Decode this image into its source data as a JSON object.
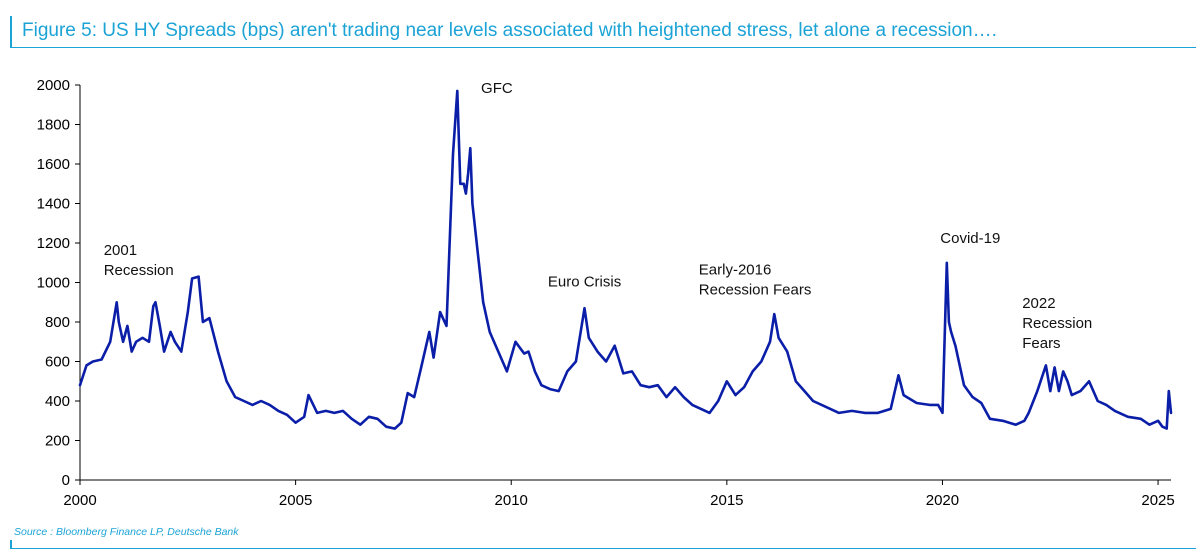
{
  "header": {
    "title": "Figure 5: US HY Spreads (bps) aren't trading near levels associated with heightened stress, let alone a recession…."
  },
  "footer": {
    "source": "Source : Bloomberg Finance LP, Deutsche Bank"
  },
  "colors": {
    "accent": "#1ba3d6",
    "series": "#0b1ea8",
    "axis": "#000000"
  },
  "chart_data": {
    "type": "line",
    "title": "",
    "xlabel": "",
    "ylabel": "",
    "xlim": [
      2000,
      2025.3
    ],
    "ylim": [
      0,
      2000
    ],
    "x_ticks": [
      2000,
      2005,
      2010,
      2015,
      2020,
      2025
    ],
    "y_ticks": [
      0,
      200,
      400,
      600,
      800,
      1000,
      1200,
      1400,
      1600,
      1800,
      2000
    ],
    "grid": false,
    "legend": "none",
    "series": [
      {
        "x": [
          2000.0,
          2000.15,
          2000.3,
          2000.5,
          2000.7,
          2000.85,
          2000.9,
          2001.0,
          2001.1,
          2001.2,
          2001.3,
          2001.45,
          2001.6,
          2001.7,
          2001.75,
          2001.85,
          2001.95,
          2002.1,
          2002.2,
          2002.35,
          2002.5,
          2002.6,
          2002.75,
          2002.85,
          2003.0,
          2003.2,
          2003.4,
          2003.6,
          2003.8,
          2004.0,
          2004.2,
          2004.4,
          2004.6,
          2004.8,
          2005.0,
          2005.2,
          2005.3,
          2005.5,
          2005.7,
          2005.9,
          2006.1,
          2006.3,
          2006.5,
          2006.7,
          2006.9,
          2007.1,
          2007.3,
          2007.45,
          2007.6,
          2007.75,
          2007.9,
          2008.1,
          2008.2,
          2008.35,
          2008.5,
          2008.65,
          2008.75,
          2008.82,
          2008.9,
          2008.95,
          2009.0,
          2009.05,
          2009.1,
          2009.2,
          2009.35,
          2009.5,
          2009.7,
          2009.9,
          2010.1,
          2010.3,
          2010.4,
          2010.55,
          2010.7,
          2010.9,
          2011.1,
          2011.3,
          2011.5,
          2011.7,
          2011.8,
          2012.0,
          2012.2,
          2012.4,
          2012.6,
          2012.8,
          2013.0,
          2013.2,
          2013.4,
          2013.6,
          2013.8,
          2014.0,
          2014.2,
          2014.4,
          2014.6,
          2014.8,
          2015.0,
          2015.2,
          2015.4,
          2015.6,
          2015.8,
          2016.0,
          2016.1,
          2016.2,
          2016.4,
          2016.6,
          2016.8,
          2017.0,
          2017.3,
          2017.6,
          2017.9,
          2018.2,
          2018.5,
          2018.8,
          2018.98,
          2019.1,
          2019.4,
          2019.7,
          2019.9,
          2020.0,
          2020.1,
          2020.15,
          2020.2,
          2020.3,
          2020.5,
          2020.7,
          2020.9,
          2021.1,
          2021.4,
          2021.7,
          2021.9,
          2022.0,
          2022.2,
          2022.4,
          2022.5,
          2022.6,
          2022.7,
          2022.8,
          2022.9,
          2023.0,
          2023.2,
          2023.4,
          2023.6,
          2023.8,
          2024.0,
          2024.3,
          2024.6,
          2024.8,
          2025.0,
          2025.1,
          2025.2,
          2025.25,
          2025.3
        ],
        "values": [
          480,
          580,
          600,
          610,
          700,
          900,
          800,
          700,
          780,
          650,
          700,
          720,
          700,
          880,
          900,
          780,
          650,
          750,
          700,
          650,
          850,
          1020,
          1030,
          800,
          820,
          650,
          500,
          420,
          400,
          380,
          400,
          380,
          350,
          330,
          290,
          320,
          430,
          340,
          350,
          340,
          350,
          310,
          280,
          320,
          310,
          270,
          260,
          290,
          440,
          420,
          560,
          750,
          620,
          850,
          780,
          1650,
          1970,
          1500,
          1500,
          1450,
          1550,
          1680,
          1400,
          1200,
          900,
          750,
          650,
          550,
          700,
          640,
          650,
          550,
          480,
          460,
          450,
          550,
          600,
          870,
          720,
          650,
          600,
          680,
          540,
          550,
          480,
          470,
          480,
          420,
          470,
          420,
          380,
          360,
          340,
          400,
          500,
          430,
          470,
          550,
          600,
          700,
          840,
          720,
          650,
          500,
          450,
          400,
          370,
          340,
          350,
          340,
          340,
          360,
          530,
          430,
          390,
          380,
          380,
          340,
          1100,
          800,
          750,
          680,
          480,
          420,
          390,
          310,
          300,
          280,
          300,
          340,
          450,
          580,
          450,
          570,
          450,
          550,
          500,
          430,
          450,
          500,
          400,
          380,
          350,
          320,
          310,
          280,
          300,
          270,
          260,
          450,
          340
        ]
      }
    ],
    "annotations": [
      {
        "lines": [
          "2001",
          "Recession"
        ],
        "x": 2000.55,
        "y": 1140
      },
      {
        "lines": [
          "GFC"
        ],
        "x": 2009.3,
        "y": 1960
      },
      {
        "lines": [
          "Euro Crisis"
        ],
        "x": 2010.85,
        "y": 980
      },
      {
        "lines": [
          "Early-2016",
          "Recession Fears"
        ],
        "x": 2014.35,
        "y": 1040
      },
      {
        "lines": [
          "Covid-19"
        ],
        "x": 2019.95,
        "y": 1200
      },
      {
        "lines": [
          "2022",
          "Recession",
          "Fears"
        ],
        "x": 2021.85,
        "y": 870
      }
    ]
  }
}
